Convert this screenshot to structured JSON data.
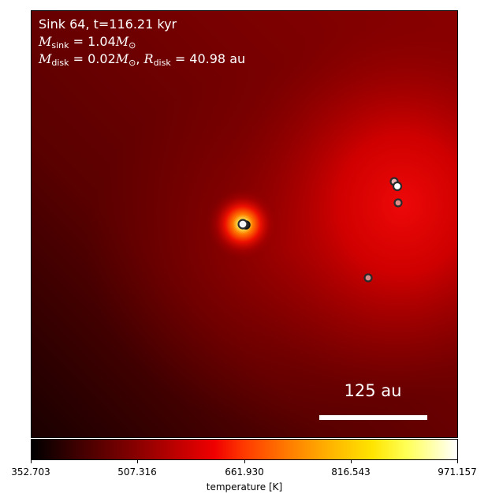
{
  "annotation": {
    "line1": "Sink 64, t=116.21 kyr",
    "msink_symbol": "M",
    "msink_sub": "sink",
    "msink_value": "= 1.04",
    "msink_unit": "M",
    "msun_sub": "⊙",
    "mdisk_symbol": "M",
    "mdisk_sub": "disk",
    "mdisk_value": "= 0.02",
    "mdisk_unit": "M",
    "rdisk_symbol": "R",
    "rdisk_sub": "disk",
    "rdisk_value": "= 40.98",
    "rdisk_unit": "au"
  },
  "scale_bar": {
    "label": "125 au"
  },
  "colorbar": {
    "ticks": [
      "352.703",
      "507.316",
      "661.930",
      "816.543",
      "971.157"
    ],
    "label": "temperature [K]",
    "colors": [
      "#000000",
      "#7a0000",
      "#f00000",
      "#ff7a00",
      "#ffe400",
      "#ffffff"
    ]
  },
  "sinks": [
    {
      "name": "central-sink",
      "fill": "#f5f5f5"
    },
    {
      "name": "sink-upper-right-1",
      "fill": "#e8b0b0"
    },
    {
      "name": "sink-upper-right-2",
      "fill": "#ffffff"
    },
    {
      "name": "sink-right-lower",
      "fill": "#e08a8a"
    },
    {
      "name": "sink-lower",
      "fill": "#d88a8a"
    }
  ]
}
